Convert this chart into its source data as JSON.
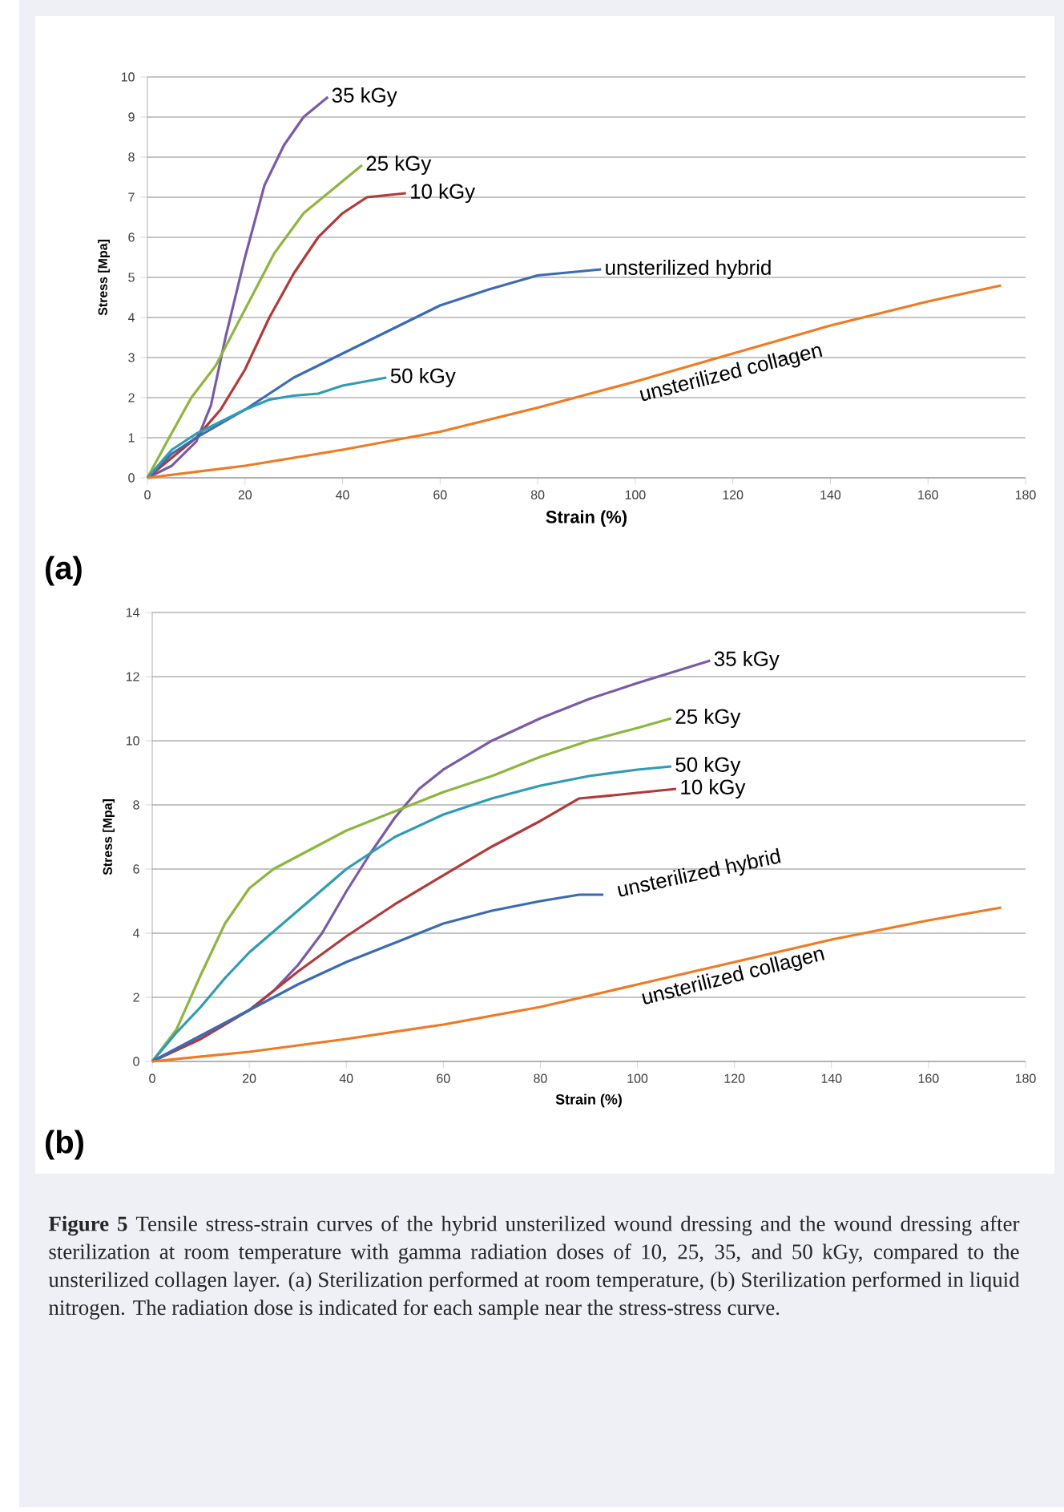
{
  "chart_data": [
    {
      "type": "line",
      "xlabel": "Strain (%)",
      "ylabel": "Stress [Mpa]",
      "xlim": [
        0,
        180
      ],
      "ylim": [
        0,
        10
      ],
      "xticks": [
        0,
        20,
        40,
        60,
        80,
        100,
        120,
        140,
        160,
        180
      ],
      "yticks": [
        0,
        1,
        2,
        3,
        4,
        5,
        6,
        7,
        8,
        9,
        10
      ],
      "grid": "y",
      "annotations": [
        "(a)"
      ],
      "series": [
        {
          "name": "35 kGy",
          "color": "#7a5aa6",
          "x": [
            0,
            5,
            10,
            13,
            16,
            20,
            24,
            28,
            32,
            37
          ],
          "values": [
            0,
            0.3,
            0.9,
            1.8,
            3.5,
            5.5,
            7.3,
            8.3,
            9.0,
            9.5
          ]
        },
        {
          "name": "25 kGy",
          "color": "#8db63f",
          "x": [
            0,
            4,
            9,
            14,
            20,
            26,
            32,
            38,
            44
          ],
          "values": [
            0,
            0.9,
            2.0,
            2.8,
            4.2,
            5.6,
            6.6,
            7.2,
            7.8
          ]
        },
        {
          "name": "10 kGy",
          "color": "#b03a3a",
          "x": [
            0,
            5,
            10,
            15,
            20,
            25,
            30,
            35,
            40,
            45,
            53
          ],
          "values": [
            0,
            0.5,
            1.0,
            1.7,
            2.7,
            4.0,
            5.1,
            6.0,
            6.6,
            7.0,
            7.1
          ]
        },
        {
          "name": "unsterilized hybrid",
          "color": "#3b6bb3",
          "x": [
            0,
            5,
            10,
            20,
            30,
            40,
            50,
            60,
            70,
            80,
            93
          ],
          "values": [
            0,
            0.6,
            1.0,
            1.7,
            2.5,
            3.1,
            3.7,
            4.3,
            4.7,
            5.05,
            5.2
          ]
        },
        {
          "name": "50 kGy",
          "color": "#2f9bb4",
          "x": [
            0,
            5,
            10,
            15,
            20,
            25,
            30,
            35,
            40,
            49
          ],
          "values": [
            0,
            0.7,
            1.1,
            1.4,
            1.7,
            1.95,
            2.05,
            2.1,
            2.3,
            2.5
          ]
        },
        {
          "name": "unsterilized collagen",
          "color": "#f07a22",
          "x": [
            0,
            20,
            40,
            60,
            80,
            100,
            120,
            140,
            160,
            175
          ],
          "values": [
            0,
            0.3,
            0.7,
            1.15,
            1.75,
            2.4,
            3.1,
            3.8,
            4.4,
            4.8
          ]
        }
      ]
    },
    {
      "type": "line",
      "xlabel": "Strain (%)",
      "ylabel": "Stress [Mpa]",
      "xlim": [
        0,
        180
      ],
      "ylim": [
        0,
        14
      ],
      "xticks": [
        0,
        20,
        40,
        60,
        80,
        100,
        120,
        140,
        160,
        180
      ],
      "yticks": [
        0,
        2,
        4,
        6,
        8,
        10,
        12,
        14
      ],
      "grid": "y",
      "annotations": [
        "(b)",
        "**Figure 5** Tensile stress-strain curves of the hybrid unsterilized wound dressing and the wound dressing after sterilization at room temperature with gamma radiation doses of 10, 25, 35, and 50 kGy, compared to the unsterilized collagen layer. (a) Sterilization performed at room temperature, (b) Sterilization performed in liquid nitrogen. The radiation dose is indicated for each sample near the stress-stress curve."
      ],
      "series": [
        {
          "name": "35 kGy",
          "color": "#7a5aa6",
          "x": [
            0,
            10,
            20,
            25,
            30,
            35,
            40,
            45,
            50,
            55,
            60,
            70,
            80,
            90,
            100,
            115
          ],
          "values": [
            0,
            0.8,
            1.6,
            2.2,
            3.0,
            4.0,
            5.3,
            6.5,
            7.6,
            8.5,
            9.1,
            10.0,
            10.7,
            11.3,
            11.8,
            12.5
          ]
        },
        {
          "name": "25 kGy",
          "color": "#8db63f",
          "x": [
            0,
            5,
            10,
            15,
            20,
            25,
            30,
            40,
            50,
            60,
            70,
            80,
            90,
            100,
            107
          ],
          "values": [
            0,
            1.0,
            2.7,
            4.3,
            5.4,
            6.0,
            6.4,
            7.2,
            7.8,
            8.4,
            8.9,
            9.5,
            10.0,
            10.4,
            10.7
          ]
        },
        {
          "name": "50 kGy",
          "color": "#2f9bb4",
          "x": [
            0,
            5,
            10,
            15,
            20,
            30,
            40,
            50,
            60,
            70,
            80,
            90,
            100,
            107
          ],
          "values": [
            0,
            0.9,
            1.7,
            2.6,
            3.4,
            4.7,
            6.0,
            7.0,
            7.7,
            8.2,
            8.6,
            8.9,
            9.1,
            9.2
          ]
        },
        {
          "name": "10 kGy",
          "color": "#b03a3a",
          "x": [
            0,
            10,
            20,
            30,
            40,
            50,
            60,
            70,
            80,
            88,
            95,
            108
          ],
          "values": [
            0,
            0.7,
            1.6,
            2.8,
            3.9,
            4.9,
            5.8,
            6.7,
            7.5,
            8.2,
            8.3,
            8.5
          ]
        },
        {
          "name": "unsterilized hybrid",
          "color": "#3b6bb3",
          "x": [
            0,
            10,
            20,
            30,
            40,
            50,
            60,
            70,
            80,
            88,
            93
          ],
          "values": [
            0,
            0.8,
            1.6,
            2.4,
            3.1,
            3.7,
            4.3,
            4.7,
            5.0,
            5.2,
            5.2
          ]
        },
        {
          "name": "unsterilized collagen",
          "color": "#f07a22",
          "x": [
            0,
            20,
            40,
            60,
            80,
            100,
            120,
            140,
            160,
            175
          ],
          "values": [
            0,
            0.3,
            0.7,
            1.15,
            1.7,
            2.4,
            3.1,
            3.8,
            4.4,
            4.8
          ]
        }
      ]
    }
  ]
}
